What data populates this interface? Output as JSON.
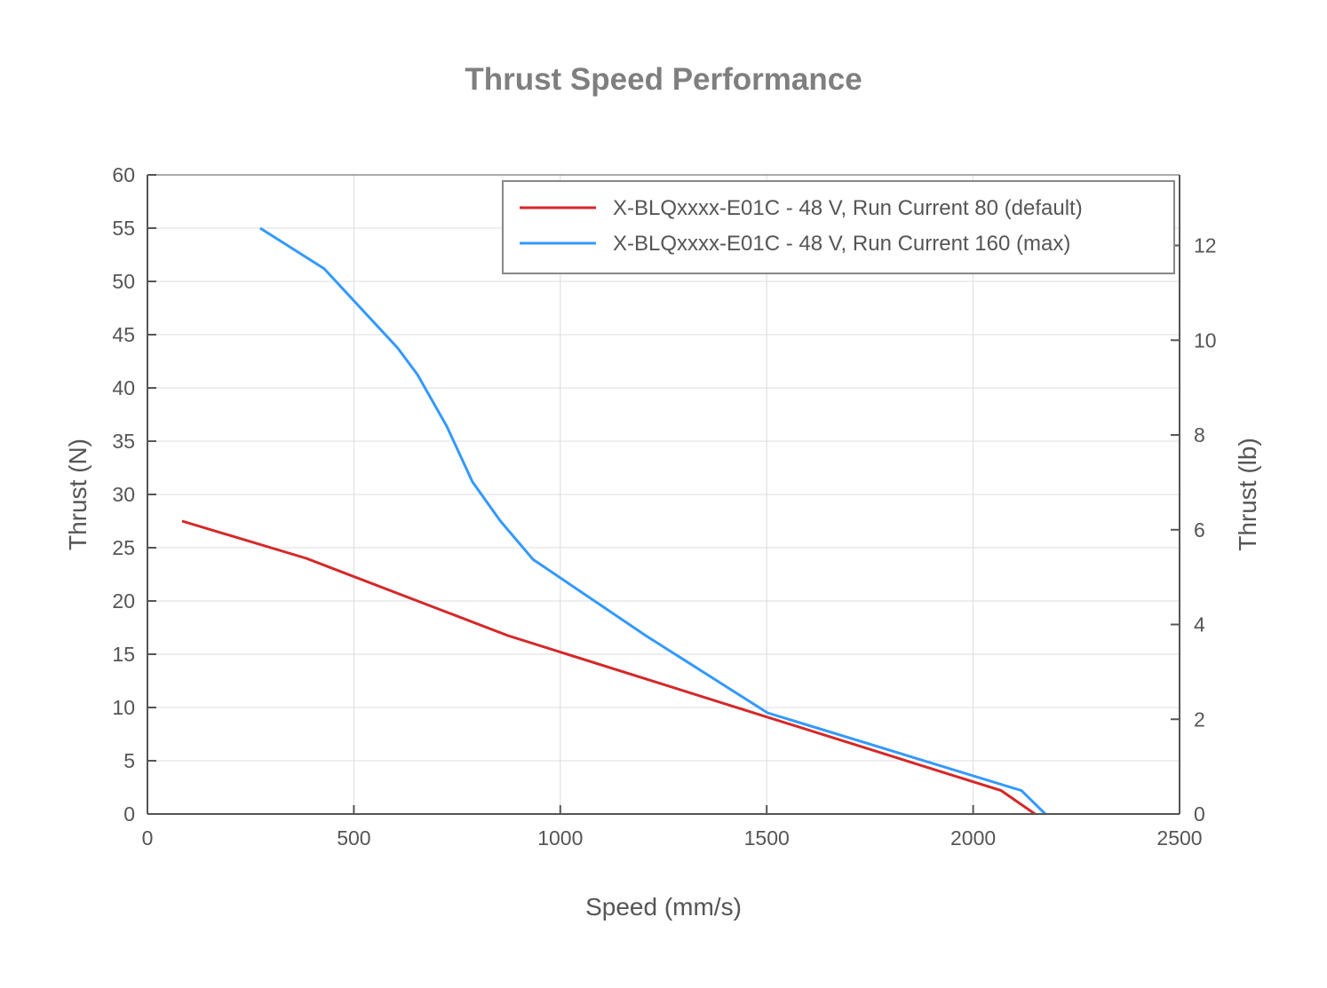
{
  "chart_data": {
    "type": "line",
    "title": "Thrust Speed Performance",
    "xlabel": "Speed (mm/s)",
    "ylabel": "Thrust (N)",
    "y2label": "Thrust (lb)",
    "xlim": [
      0,
      2500
    ],
    "ylim": [
      0,
      60
    ],
    "y2lim": [
      0,
      13.49
    ],
    "xticks": [
      0,
      500,
      1000,
      1500,
      2000,
      2500
    ],
    "yticks": [
      0,
      5,
      10,
      15,
      20,
      25,
      30,
      35,
      40,
      45,
      50,
      55,
      60
    ],
    "y2ticks": [
      0,
      2,
      4,
      6,
      8,
      10,
      12
    ],
    "grid": true,
    "legend_position": "top-right",
    "series": [
      {
        "name": "X-BLQxxxx-E01C - 48 V, Run Current 80 (default)",
        "color": "#d62728",
        "x": [
          84,
          385,
          873,
          2068,
          2150
        ],
        "y": [
          27.5,
          24.0,
          16.75,
          2.2,
          0
        ]
      },
      {
        "name": "X-BLQxxxx-E01C - 48 V, Run Current 160 (max)",
        "color": "#3399ff",
        "x": [
          273,
          428,
          606,
          654,
          725,
          787,
          855,
          934,
          1207,
          1502,
          2117,
          2175
        ],
        "y": [
          55.0,
          51.2,
          43.75,
          41.25,
          36.4,
          31.2,
          27.5,
          23.9,
          16.75,
          9.5,
          2.2,
          0
        ]
      }
    ]
  }
}
